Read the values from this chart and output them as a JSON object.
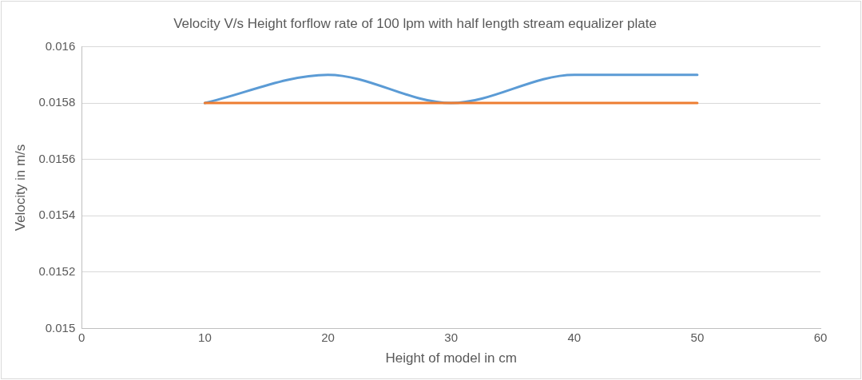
{
  "chart_data": {
    "type": "line",
    "title": "Velocity V/s Height forflow rate of 100 lpm with half length stream equalizer plate",
    "xlabel": "Height of model in cm",
    "ylabel": "Velocity in m/s",
    "x": [
      10,
      20,
      30,
      40,
      50
    ],
    "series": [
      {
        "color": "#5b9bd5",
        "values": [
          0.0158,
          0.0159,
          0.0158,
          0.0159,
          0.0159
        ]
      },
      {
        "color": "#ed7d31",
        "values": [
          0.0158,
          0.0158,
          0.0158,
          0.0158,
          0.0158
        ]
      }
    ],
    "xlim": [
      0,
      60
    ],
    "xticks": [
      0,
      10,
      20,
      30,
      40,
      50,
      60
    ],
    "ylim": [
      0.015,
      0.016
    ],
    "yticks": [
      0.015,
      0.0152,
      0.0154,
      0.0156,
      0.0158,
      0.016
    ],
    "grid": "y",
    "marker": "none",
    "line_style": "solid"
  }
}
